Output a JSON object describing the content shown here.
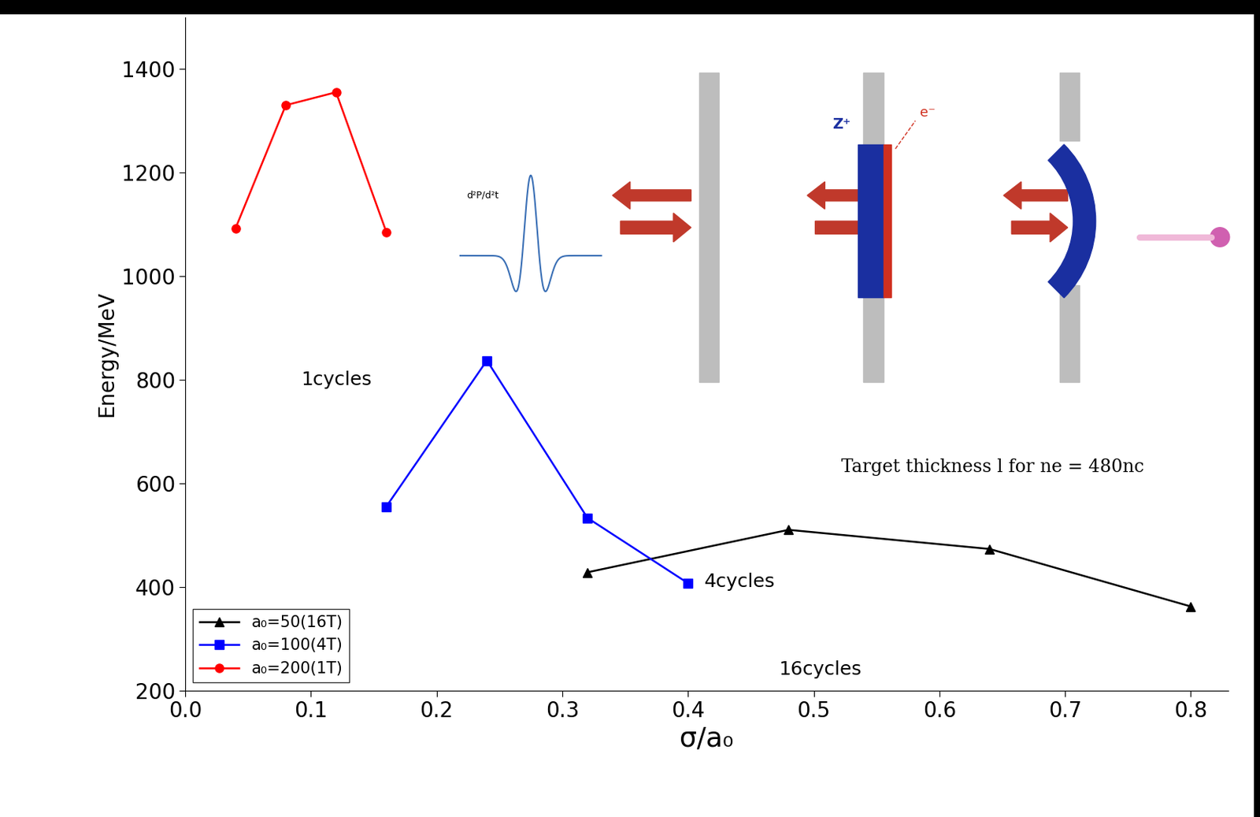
{
  "chart_data": {
    "type": "line",
    "x_label": "σ/a₀",
    "y_label": "Energy/MeV",
    "xlim": [
      0,
      0.83
    ],
    "xticks": [
      0.0,
      0.1,
      0.2,
      0.3,
      0.4,
      0.5,
      0.6,
      0.7,
      0.8
    ],
    "ylim": [
      200,
      1500
    ],
    "yticks": [
      200,
      400,
      600,
      800,
      1000,
      1200,
      1400
    ],
    "legend": "lower left",
    "series": [
      {
        "name": "a₀=50(16T)",
        "color": "#000000",
        "marker": "triangle",
        "x": [
          0.32,
          0.48,
          0.64,
          0.8
        ],
        "values": [
          428,
          510,
          473,
          362
        ]
      },
      {
        "name": "a₀=100(4T)",
        "color": "#0000ff",
        "marker": "square",
        "x": [
          0.16,
          0.24,
          0.32,
          0.4
        ],
        "values": [
          555,
          837,
          533,
          407
        ]
      },
      {
        "name": "a₀=200(1T)",
        "color": "#ff0000",
        "marker": "circle",
        "x": [
          0.04,
          0.08,
          0.12,
          0.16
        ],
        "values": [
          1092,
          1330,
          1355,
          1085
        ]
      }
    ],
    "annotations": [
      "1cycles",
      "4cycles",
      "16cycles",
      "Target thickness l for ne = 480nc",
      "d²P/d²t",
      "Z⁺",
      "e⁻"
    ]
  }
}
